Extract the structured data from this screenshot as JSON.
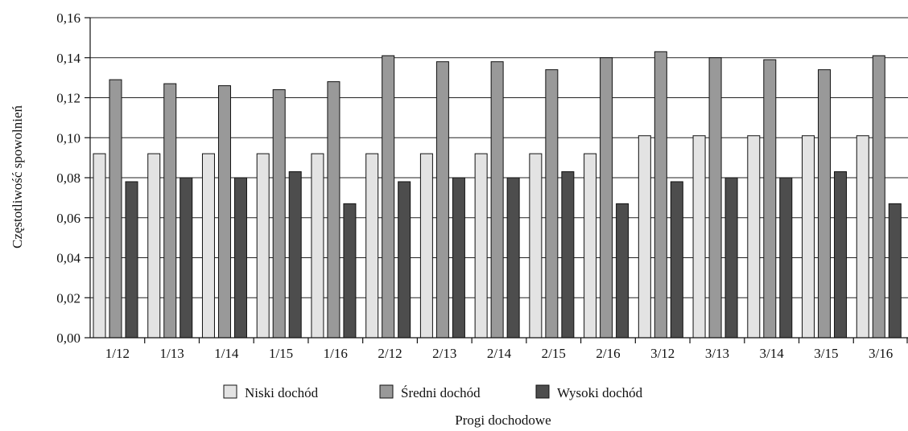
{
  "chart_data": {
    "type": "bar",
    "title": "",
    "xlabel": "Progi dochodowe",
    "ylabel": "Częstotliwość spowolnień",
    "ylim": [
      0,
      0.16
    ],
    "yticks": [
      0,
      0.02,
      0.04,
      0.06,
      0.08,
      0.1,
      0.12,
      0.14,
      0.16
    ],
    "ytick_labels": [
      "0,00",
      "0,02",
      "0,04",
      "0,06",
      "0,08",
      "0,10",
      "0,12",
      "0,14",
      "0,16"
    ],
    "grid": "horizontal",
    "legend_position": "bottom",
    "categories": [
      "1/12",
      "1/13",
      "1/14",
      "1/15",
      "1/16",
      "2/12",
      "2/13",
      "2/14",
      "2/15",
      "2/16",
      "3/12",
      "3/13",
      "3/14",
      "3/15",
      "3/16"
    ],
    "series": [
      {
        "name": "Niski dochód",
        "color": "#e3e3e3",
        "values": [
          0.092,
          0.092,
          0.092,
          0.092,
          0.092,
          0.092,
          0.092,
          0.092,
          0.092,
          0.092,
          0.101,
          0.101,
          0.101,
          0.101,
          0.101
        ]
      },
      {
        "name": "Średni dochód",
        "color": "#999999",
        "values": [
          0.129,
          0.127,
          0.126,
          0.124,
          0.128,
          0.141,
          0.138,
          0.138,
          0.134,
          0.14,
          0.143,
          0.14,
          0.139,
          0.134,
          0.141
        ]
      },
      {
        "name": "Wysoki dochód",
        "color": "#4d4d4d",
        "values": [
          0.078,
          0.08,
          0.08,
          0.083,
          0.067,
          0.078,
          0.08,
          0.08,
          0.083,
          0.067,
          0.078,
          0.08,
          0.08,
          0.083,
          0.067
        ]
      }
    ]
  }
}
